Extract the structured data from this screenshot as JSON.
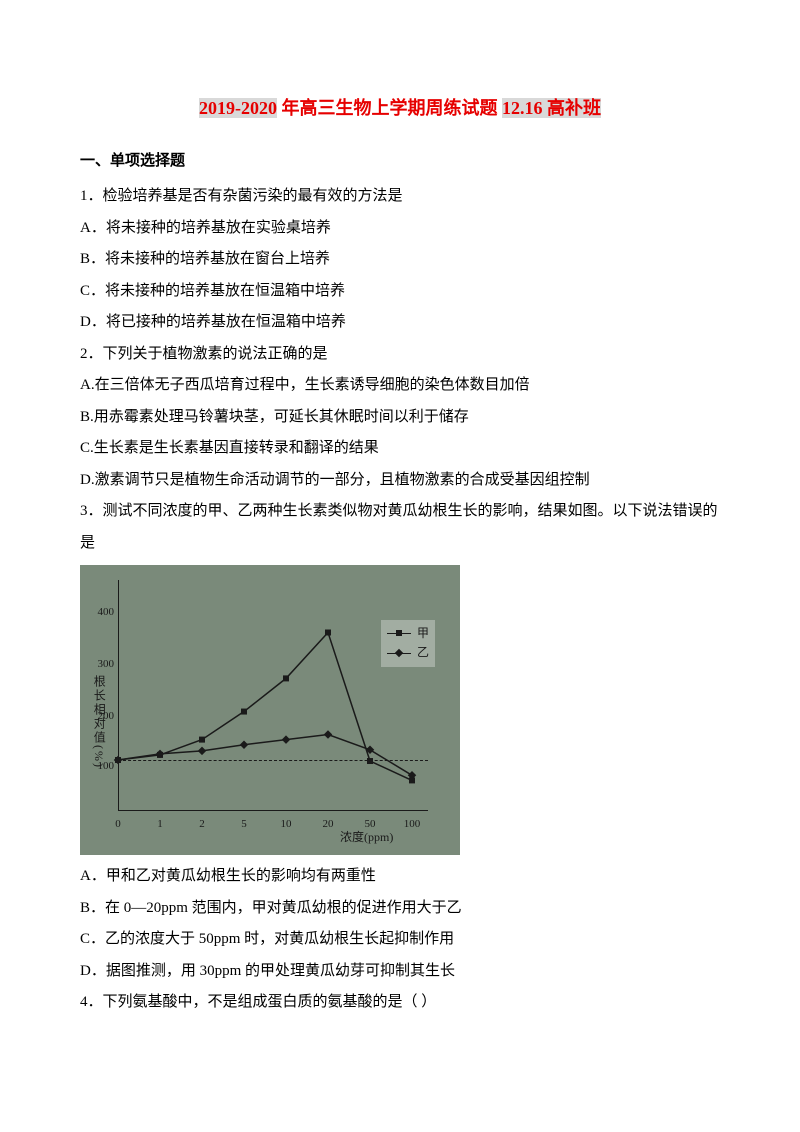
{
  "title": {
    "part1": "2019-2020",
    "part2": " 年高三生物上学期周练试题 ",
    "part3": "12.16",
    "part4": " 高补班"
  },
  "section1": {
    "heading": "一、单项选择题"
  },
  "q1": {
    "text": "1．检验培养基是否有杂菌污染的最有效的方法是",
    "a": "A．将未接种的培养基放在实验桌培养",
    "b": "B．将未接种的培养基放在窗台上培养",
    "c": "C．将未接种的培养基放在恒温箱中培养",
    "d": "D．将已接种的培养基放在恒温箱中培养"
  },
  "q2": {
    "text": "2．下列关于植物激素的说法正确的是",
    "a": "A.在三倍体无子西瓜培育过程中，生长素诱导细胞的染色体数目加倍",
    "b": "B.用赤霉素处理马铃薯块茎，可延长其休眠时间以利于储存",
    "c": "C.生长素是生长素基因直接转录和翻译的结果",
    "d": "D.激素调节只是植物生命活动调节的一部分，且植物激素的合成受基因组控制"
  },
  "q3": {
    "text1": "3．测试不同浓度的甲、乙两种生长素类似物对黄瓜幼根生长的影响，结果如图。以下说法错误的",
    "text2": "是",
    "a": "A．甲和乙对黄瓜幼根生长的影响均有两重性",
    "b": "B．在 0—20ppm 范围内，甲对黄瓜幼根的促进作用大于乙",
    "c": "C．乙的浓度大于 50ppm 时，对黄瓜幼根生长起抑制作用",
    "d": "D．据图推测，用 30ppm 的甲处理黄瓜幼芽可抑制其生长"
  },
  "q4": {
    "text": "4．下列氨基酸中，不是组成蛋白质的氨基酸的是（   ）"
  },
  "chart": {
    "ylabel": "根长相对值(%)",
    "xlabel": "浓度(ppm)",
    "yticks": [
      100,
      200,
      300,
      400
    ],
    "xticks": [
      0,
      1,
      2,
      5,
      10,
      20,
      50,
      100
    ],
    "legend_jia": "甲",
    "legend_yi": "乙",
    "background": "#7a8a7a",
    "line_color": "#1a1a1a",
    "jia_points": [
      {
        "x": 0,
        "y": 100
      },
      {
        "x": 1,
        "y": 110
      },
      {
        "x": 2,
        "y": 140
      },
      {
        "x": 5,
        "y": 195
      },
      {
        "x": 10,
        "y": 260
      },
      {
        "x": 20,
        "y": 350
      },
      {
        "x": 50,
        "y": 98
      },
      {
        "x": 100,
        "y": 60
      }
    ],
    "yi_points": [
      {
        "x": 0,
        "y": 100
      },
      {
        "x": 1,
        "y": 112
      },
      {
        "x": 2,
        "y": 118
      },
      {
        "x": 5,
        "y": 130
      },
      {
        "x": 10,
        "y": 140
      },
      {
        "x": 20,
        "y": 150
      },
      {
        "x": 50,
        "y": 120
      },
      {
        "x": 100,
        "y": 70
      }
    ]
  }
}
